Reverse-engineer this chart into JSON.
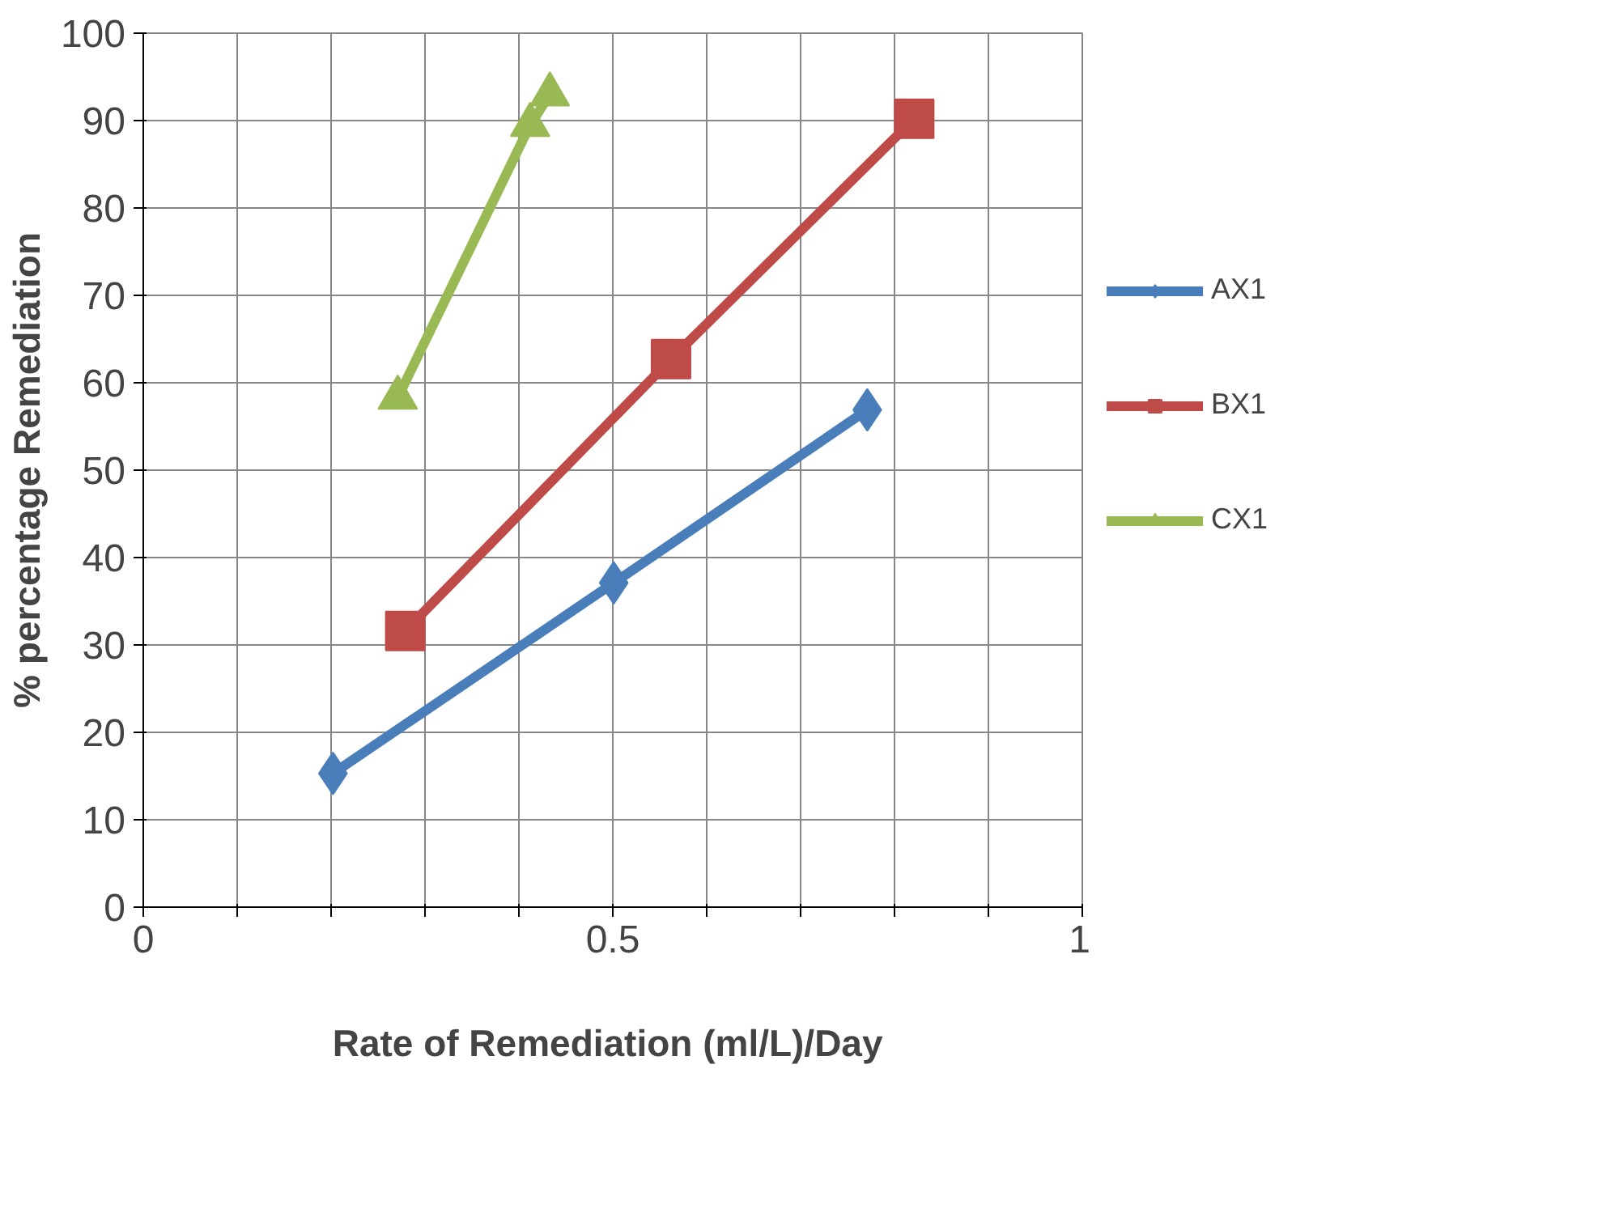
{
  "chart_data": {
    "type": "line",
    "xlabel": "Rate of Remediation  (ml/L)/Day",
    "ylabel": "% percentage Remediation",
    "xlim": [
      0,
      1
    ],
    "xticks": [
      0,
      {
        "value": 0.1,
        "label": null
      },
      {
        "value": 0.2,
        "label": null
      },
      {
        "value": 0.3,
        "label": null
      },
      {
        "value": 0.4,
        "label": null
      },
      0.5,
      {
        "value": 0.6,
        "label": null
      },
      {
        "value": 0.7,
        "label": null
      },
      {
        "value": 0.8,
        "label": null
      },
      {
        "value": 0.9,
        "label": null
      },
      1
    ],
    "ylim": [
      0,
      100
    ],
    "yticks": [
      0,
      10,
      20,
      30,
      40,
      50,
      60,
      70,
      80,
      90,
      100
    ],
    "grid": true,
    "legend": "right",
    "line_style": "solid",
    "series": [
      {
        "name": "AX1",
        "color": "#4a7ebb",
        "marker": "diamond",
        "x": [
          0.202,
          0.501,
          0.771
        ],
        "values": [
          15.3,
          37.1,
          56.9
        ]
      },
      {
        "name": "BX1",
        "color": "#be4b48",
        "marker": "square",
        "x": [
          0.279,
          0.562,
          0.821
        ],
        "values": [
          31.6,
          62.7,
          90.2
        ]
      },
      {
        "name": "CX1",
        "color": "#98b954",
        "marker": "triangle",
        "x": [
          0.271,
          0.412,
          0.433
        ],
        "values": [
          58.3,
          89.5,
          93.0
        ]
      }
    ]
  }
}
